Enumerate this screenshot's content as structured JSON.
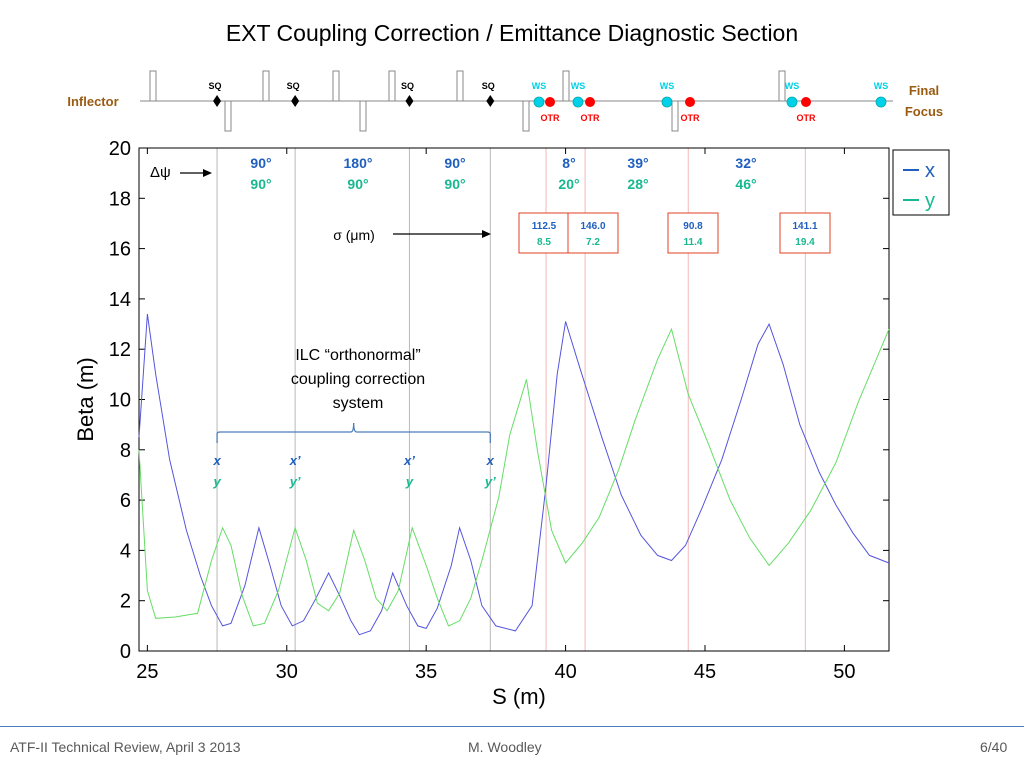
{
  "slide": {
    "title": "EXT Coupling Correction / Emittance Diagnostic Section",
    "footer_left": "ATF-II Technical Review, April 3 2013",
    "footer_center": "M. Woodley",
    "footer_right": "6/40"
  },
  "chart_data": {
    "type": "line",
    "title": "",
    "xlabel": "S (m)",
    "ylabel": "Beta (m)",
    "xlim": [
      24.7,
      51.6
    ],
    "ylim": [
      0,
      20
    ],
    "xticks": [
      25,
      30,
      35,
      40,
      45,
      50
    ],
    "yticks": [
      0,
      2,
      4,
      6,
      8,
      10,
      12,
      14,
      16,
      18,
      20
    ],
    "grid": false,
    "legend": {
      "placement": "top-right",
      "entries": [
        "x",
        "y"
      ]
    },
    "colors": {
      "x": "#5555dd",
      "y": "#66dd66",
      "text_x": "#1f5fbf",
      "text_y": "#18b890",
      "otr": "#ff0000",
      "ws": "#00d0e8",
      "brown": "#9a5b12"
    },
    "series": [
      {
        "name": "x",
        "points": [
          [
            24.7,
            8.5
          ],
          [
            25.0,
            13.4
          ],
          [
            25.3,
            11.0
          ],
          [
            25.8,
            7.6
          ],
          [
            26.4,
            4.8
          ],
          [
            26.9,
            3.0
          ],
          [
            27.3,
            1.8
          ],
          [
            27.7,
            1.0
          ],
          [
            28.0,
            1.1
          ],
          [
            28.5,
            2.6
          ],
          [
            29.0,
            4.9
          ],
          [
            29.4,
            3.4
          ],
          [
            29.8,
            1.8
          ],
          [
            30.2,
            1.0
          ],
          [
            30.6,
            1.2
          ],
          [
            31.0,
            2.0
          ],
          [
            31.5,
            3.1
          ],
          [
            31.9,
            2.2
          ],
          [
            32.3,
            1.2
          ],
          [
            32.6,
            0.65
          ],
          [
            33.0,
            0.8
          ],
          [
            33.4,
            1.6
          ],
          [
            33.8,
            3.1
          ],
          [
            34.3,
            1.8
          ],
          [
            34.7,
            1.0
          ],
          [
            35.0,
            0.9
          ],
          [
            35.4,
            1.7
          ],
          [
            35.9,
            3.4
          ],
          [
            36.2,
            4.9
          ],
          [
            36.6,
            3.6
          ],
          [
            37.0,
            1.8
          ],
          [
            37.5,
            1.0
          ],
          [
            38.2,
            0.8
          ],
          [
            38.8,
            1.8
          ],
          [
            39.3,
            6.6
          ],
          [
            39.7,
            11.0
          ],
          [
            40.0,
            13.1
          ],
          [
            40.5,
            11.3
          ],
          [
            41.3,
            8.5
          ],
          [
            42.0,
            6.2
          ],
          [
            42.7,
            4.6
          ],
          [
            43.3,
            3.8
          ],
          [
            43.8,
            3.6
          ],
          [
            44.3,
            4.2
          ],
          [
            44.9,
            5.7
          ],
          [
            45.6,
            7.6
          ],
          [
            46.3,
            10.0
          ],
          [
            46.9,
            12.2
          ],
          [
            47.3,
            13.0
          ],
          [
            47.8,
            11.4
          ],
          [
            48.4,
            9.0
          ],
          [
            49.1,
            7.1
          ],
          [
            49.7,
            5.8
          ],
          [
            50.3,
            4.7
          ],
          [
            50.9,
            3.8
          ],
          [
            51.6,
            3.5
          ]
        ]
      },
      {
        "name": "y",
        "points": [
          [
            24.7,
            8.0
          ],
          [
            25.0,
            2.4
          ],
          [
            25.3,
            1.3
          ],
          [
            26.0,
            1.35
          ],
          [
            26.8,
            1.5
          ],
          [
            27.3,
            3.6
          ],
          [
            27.7,
            4.9
          ],
          [
            28.0,
            4.2
          ],
          [
            28.4,
            2.2
          ],
          [
            28.8,
            1.0
          ],
          [
            29.2,
            1.1
          ],
          [
            29.7,
            2.4
          ],
          [
            30.3,
            4.9
          ],
          [
            30.7,
            3.6
          ],
          [
            31.1,
            1.9
          ],
          [
            31.5,
            1.6
          ],
          [
            31.9,
            2.3
          ],
          [
            32.4,
            4.8
          ],
          [
            32.8,
            3.6
          ],
          [
            33.2,
            2.1
          ],
          [
            33.6,
            1.6
          ],
          [
            34.0,
            2.4
          ],
          [
            34.5,
            4.9
          ],
          [
            35.0,
            3.4
          ],
          [
            35.4,
            2.1
          ],
          [
            35.8,
            1.0
          ],
          [
            36.2,
            1.2
          ],
          [
            36.6,
            2.1
          ],
          [
            37.0,
            3.6
          ],
          [
            37.6,
            6.1
          ],
          [
            38.0,
            8.6
          ],
          [
            38.6,
            10.8
          ],
          [
            39.0,
            7.9
          ],
          [
            39.5,
            4.8
          ],
          [
            40.0,
            3.5
          ],
          [
            40.6,
            4.3
          ],
          [
            41.2,
            5.3
          ],
          [
            41.9,
            7.2
          ],
          [
            42.5,
            9.2
          ],
          [
            43.3,
            11.6
          ],
          [
            43.8,
            12.8
          ],
          [
            44.4,
            10.2
          ],
          [
            45.1,
            8.3
          ],
          [
            45.9,
            6.0
          ],
          [
            46.6,
            4.5
          ],
          [
            47.3,
            3.4
          ],
          [
            48.0,
            4.3
          ],
          [
            48.8,
            5.6
          ],
          [
            49.7,
            7.5
          ],
          [
            50.5,
            9.9
          ],
          [
            51.6,
            12.8
          ]
        ]
      }
    ],
    "annotations": {
      "dpsi_label": "Δψ",
      "phase_x": [
        "90°",
        "180°",
        "90°",
        "8°",
        "39°",
        "32°"
      ],
      "phase_y": [
        "90°",
        "90°",
        "90°",
        "20°",
        "28°",
        "46°"
      ],
      "sigma_label": "σ (μm)",
      "sigma_boxes": [
        {
          "x": "112.5",
          "y": "8.5"
        },
        {
          "x": "146.0",
          "y": "7.2"
        },
        {
          "x": "90.8",
          "y": "11.4"
        },
        {
          "x": "141.1",
          "y": "19.4"
        }
      ],
      "ilc_label": [
        "ILC “orthonormal”",
        "coupling correction",
        "system"
      ],
      "sq_markers": [
        {
          "s": 27.5,
          "top": "x",
          "bot": "y"
        },
        {
          "s": 30.3,
          "top": "x’",
          "bot": "y’"
        },
        {
          "s": 34.4,
          "top": "x’",
          "bot": "y"
        },
        {
          "s": 37.3,
          "top": "x",
          "bot": "y’"
        }
      ],
      "otr_lines_s": [
        39.3,
        40.7,
        44.4,
        48.6
      ]
    },
    "beamline": {
      "left_label": "Inflector",
      "right_label": [
        "Final",
        "Focus"
      ],
      "sq_label": "SQ",
      "ws_label": "WS",
      "otr_label": "OTR"
    }
  }
}
